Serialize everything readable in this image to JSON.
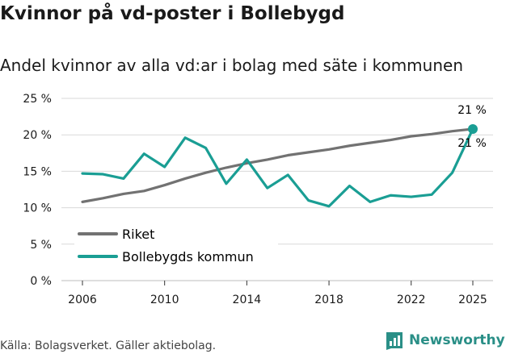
{
  "title": "Kvinnor på vd-poster i Bollebygd",
  "subtitle": "Andel kvinnor av alla vd:ar i bolag med säte i kommunen",
  "source": "Källa: Bolagsverket. Gäller aktiebolag.",
  "brand": "Newsworthy",
  "colors": {
    "riket": "#727272",
    "bollebygd": "#1a9e94",
    "grid": "#d9d9d9",
    "brand": "#2a8f87"
  },
  "chart_data": {
    "type": "line",
    "x": [
      2006,
      2007,
      2008,
      2009,
      2010,
      2011,
      2012,
      2013,
      2014,
      2015,
      2016,
      2017,
      2018,
      2019,
      2020,
      2021,
      2022,
      2023,
      2024,
      2025
    ],
    "xticks": [
      "2006",
      "2010",
      "2014",
      "2018",
      "2022",
      "2025"
    ],
    "yticks": [
      "0 %",
      "5 %",
      "10 %",
      "15 %",
      "20 %",
      "25 %"
    ],
    "ylim": [
      0,
      25
    ],
    "series": [
      {
        "name": "Riket",
        "values": [
          10.8,
          11.3,
          11.9,
          12.3,
          13.1,
          14.0,
          14.8,
          15.5,
          16.1,
          16.6,
          17.2,
          17.6,
          18.0,
          18.5,
          18.9,
          19.3,
          19.8,
          20.1,
          20.5,
          20.8
        ]
      },
      {
        "name": "Bollebygds kommun",
        "values": [
          14.7,
          14.6,
          14.0,
          17.4,
          15.6,
          19.6,
          18.2,
          13.3,
          16.6,
          12.7,
          14.5,
          11.0,
          10.2,
          13.0,
          10.8,
          11.7,
          11.5,
          11.8,
          14.8,
          20.8
        ]
      }
    ],
    "annotations": [
      "21 %",
      "21 %"
    ],
    "legend": [
      "Riket",
      "Bollebygds kommun"
    ]
  }
}
